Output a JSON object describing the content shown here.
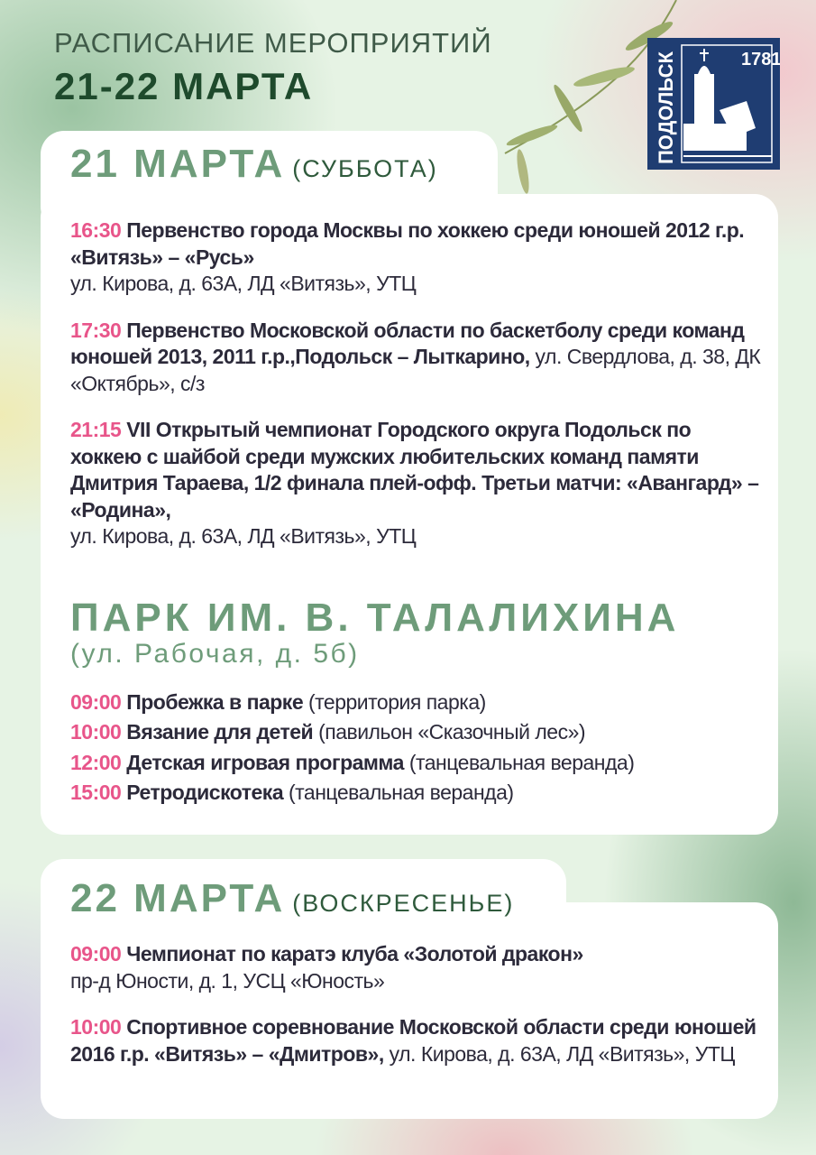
{
  "header": {
    "subtitle": "РАСПИСАНИЕ МЕРОПРИЯТИЙ",
    "title": "21-22 МАРТА"
  },
  "logo": {
    "city": "ПОДОЛЬСК",
    "year": "1781",
    "color": "#1f3d72"
  },
  "colors": {
    "time": "#e8558a",
    "heading": "#6e9c7a",
    "title_dark": "#1e4a2c"
  },
  "day1": {
    "date": "21 МАРТА",
    "weekday": "(СУББОТА)",
    "events": [
      {
        "time": "16:30",
        "title": "Первенство города Москвы по хоккею среди юношей 2012 г.р. «Витязь» – «Русь»",
        "place": "ул. Кирова, д. 63А, ЛД «Витязь», УТЦ"
      },
      {
        "time": "17:30",
        "title": "Первенство Московской области по баскетболу среди команд юношей 2013, 2011 г.р.,Подольск – Лыткарино,",
        "place": "ул. Свердлова, д. 38, ДК «Октябрь», с/з"
      },
      {
        "time": "21:15",
        "title": "VII Открытый чемпионат Городского округа Подольск по хоккею с шайбой среди мужских любительских команд памяти Дмитрия Тараева, 1/2 финала плей-офф. Третьи матчи: «Авангард» – «Родина»,",
        "place": "ул. Кирова, д. 63А, ЛД «Витязь», УТЦ"
      }
    ],
    "park": {
      "name": "ПАРК ИМ. В. ТАЛАЛИХИНА",
      "address": "(ул. Рабочая, д. 5б)",
      "events": [
        {
          "time": "09:00",
          "title": "Пробежка в парке",
          "place": "(территория парка)"
        },
        {
          "time": "10:00",
          "title": "Вязание для детей",
          "place": "(павильон «Сказочный лес»)"
        },
        {
          "time": "12:00",
          "title": "Детская игровая программа",
          "place": "(танцевальная веранда)"
        },
        {
          "time": "15:00",
          "title": "Ретродискотека",
          "place": "(танцевальная веранда)"
        }
      ]
    }
  },
  "day2": {
    "date": "22 МАРТА",
    "weekday": "(ВОСКРЕСЕНЬЕ)",
    "events": [
      {
        "time": "09:00",
        "title": "Чемпионат по каратэ клуба «Золотой дракон»",
        "place": "пр-д Юности, д. 1, УСЦ «Юность»"
      },
      {
        "time": "10:00",
        "title": "Спортивное соревнование Московской области среди юношей 2016 г.р. «Витязь» – «Дмитров»,",
        "place": "ул. Кирова, д. 63А, ЛД «Витязь», УТЦ"
      }
    ]
  }
}
